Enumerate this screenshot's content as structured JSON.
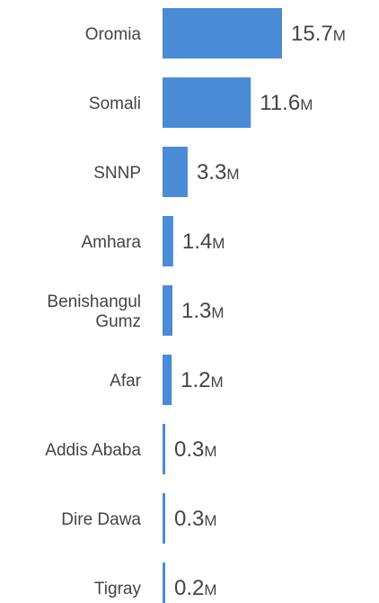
{
  "chart_data": {
    "type": "bar",
    "orientation": "horizontal",
    "categories": [
      "Oromia",
      "Somali",
      "SNNP",
      "Amhara",
      "Benishangul Gumz",
      "Afar",
      "Addis Ababa",
      "Dire Dawa",
      "Tigray"
    ],
    "category_label_lines": [
      [
        "Oromia"
      ],
      [
        "Somali"
      ],
      [
        "SNNP"
      ],
      [
        "Amhara"
      ],
      [
        "Benishangul",
        "Gumz"
      ],
      [
        "Afar"
      ],
      [
        "Addis Ababa"
      ],
      [
        "Dire Dawa"
      ],
      [
        "Tigray"
      ]
    ],
    "values": [
      15.7,
      11.6,
      3.3,
      1.4,
      1.3,
      1.2,
      0.3,
      0.3,
      0.2
    ],
    "value_labels": [
      "15.7",
      "11.6",
      "3.3",
      "1.4",
      "1.3",
      "1.2",
      "0.3",
      "0.3",
      "0.2"
    ],
    "unit_suffix": "M",
    "title": "",
    "xlabel": "",
    "ylabel": "",
    "xlim": [
      0,
      15.7
    ],
    "grid": false,
    "legend": "none",
    "bar_color": "#4a8bd6",
    "text_color": "#444444"
  }
}
